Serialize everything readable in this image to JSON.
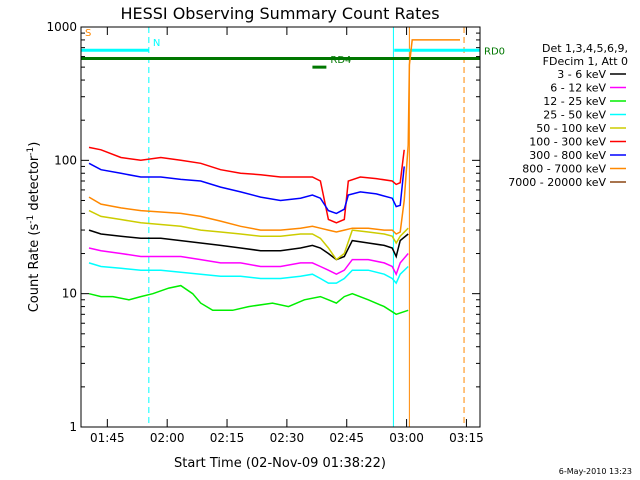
{
  "chart_data": {
    "type": "line",
    "title": "HESSI Observing Summary Count Rates",
    "xlabel": "Start Time (02-Nov-09 01:38:22)",
    "ylabel_prefix": "Count Rate (s",
    "ylabel_sup1": "-1",
    "ylabel_mid": " detector",
    "ylabel_sup2": "-1",
    "ylabel_suffix": ")",
    "y_scale": "log",
    "ylim": [
      1,
      1000
    ],
    "xlim_minutes": [
      0,
      100
    ],
    "x_ticks": [
      {
        "label": "01:45",
        "min": 6.6
      },
      {
        "label": "02:00",
        "min": 21.6
      },
      {
        "label": "02:15",
        "min": 36.6
      },
      {
        "label": "02:30",
        "min": 51.6
      },
      {
        "label": "02:45",
        "min": 66.6
      },
      {
        "label": "03:00",
        "min": 81.6
      },
      {
        "label": "03:15",
        "min": 96.6
      }
    ],
    "y_ticks": [
      {
        "label": "1",
        "v": 1
      },
      {
        "label": "10",
        "v": 10
      },
      {
        "label": "100",
        "v": 100
      },
      {
        "label": "1000",
        "v": 1000
      }
    ],
    "legend_header": [
      "Det 1,3,4,5,6,9,",
      "FDecim 1, Att 0"
    ],
    "legend_position": "right",
    "series": [
      {
        "name": "3 - 6 keV",
        "color": "#000000",
        "points": [
          [
            2,
            30
          ],
          [
            5,
            28
          ],
          [
            10,
            27
          ],
          [
            15,
            26
          ],
          [
            20,
            26
          ],
          [
            25,
            25
          ],
          [
            30,
            24
          ],
          [
            35,
            23
          ],
          [
            40,
            22
          ],
          [
            45,
            21
          ],
          [
            50,
            21
          ],
          [
            55,
            22
          ],
          [
            58,
            23
          ],
          [
            60,
            22
          ],
          [
            62,
            20
          ],
          [
            64,
            18
          ],
          [
            66,
            19
          ],
          [
            68,
            25
          ],
          [
            72,
            24
          ],
          [
            76,
            23
          ],
          [
            78,
            22
          ],
          [
            79,
            19
          ],
          [
            80,
            25
          ],
          [
            82,
            28
          ]
        ]
      },
      {
        "name": "6 - 12 keV",
        "color": "#ff00ff",
        "points": [
          [
            2,
            22
          ],
          [
            5,
            21
          ],
          [
            10,
            20
          ],
          [
            15,
            19
          ],
          [
            20,
            19
          ],
          [
            25,
            19
          ],
          [
            30,
            18
          ],
          [
            35,
            17
          ],
          [
            40,
            17
          ],
          [
            45,
            16
          ],
          [
            50,
            16
          ],
          [
            55,
            17
          ],
          [
            58,
            17
          ],
          [
            60,
            16
          ],
          [
            62,
            15
          ],
          [
            64,
            14
          ],
          [
            66,
            15
          ],
          [
            68,
            18
          ],
          [
            72,
            18
          ],
          [
            76,
            17
          ],
          [
            78,
            16
          ],
          [
            79,
            14
          ],
          [
            80,
            17
          ],
          [
            82,
            20
          ]
        ]
      },
      {
        "name": "12 - 25 keV",
        "color": "#00ee00",
        "points": [
          [
            2,
            10
          ],
          [
            5,
            9.5
          ],
          [
            8,
            9.5
          ],
          [
            12,
            9
          ],
          [
            15,
            9.5
          ],
          [
            18,
            10
          ],
          [
            22,
            11
          ],
          [
            25,
            11.5
          ],
          [
            28,
            10
          ],
          [
            30,
            8.5
          ],
          [
            33,
            7.5
          ],
          [
            38,
            7.5
          ],
          [
            42,
            8
          ],
          [
            48,
            8.5
          ],
          [
            52,
            8
          ],
          [
            56,
            9
          ],
          [
            60,
            9.5
          ],
          [
            62,
            9
          ],
          [
            64,
            8.5
          ],
          [
            66,
            9.5
          ],
          [
            68,
            10
          ],
          [
            72,
            9
          ],
          [
            76,
            8
          ],
          [
            79,
            7
          ],
          [
            82,
            7.5
          ]
        ]
      },
      {
        "name": "25 - 50 keV",
        "color": "#00ffff",
        "points": [
          [
            2,
            17
          ],
          [
            5,
            16
          ],
          [
            10,
            15.5
          ],
          [
            15,
            15
          ],
          [
            20,
            15
          ],
          [
            25,
            14.5
          ],
          [
            30,
            14
          ],
          [
            35,
            13.5
          ],
          [
            40,
            13.5
          ],
          [
            45,
            13
          ],
          [
            50,
            13
          ],
          [
            55,
            13.5
          ],
          [
            58,
            14
          ],
          [
            60,
            13
          ],
          [
            62,
            12
          ],
          [
            64,
            12
          ],
          [
            66,
            13
          ],
          [
            68,
            15
          ],
          [
            72,
            15
          ],
          [
            76,
            14
          ],
          [
            78,
            13
          ],
          [
            79,
            12
          ],
          [
            80,
            14
          ],
          [
            82,
            16
          ]
        ]
      },
      {
        "name": "50 - 100 keV",
        "color": "#cccc00",
        "points": [
          [
            2,
            42
          ],
          [
            5,
            38
          ],
          [
            10,
            36
          ],
          [
            15,
            34
          ],
          [
            20,
            33
          ],
          [
            25,
            32
          ],
          [
            30,
            30
          ],
          [
            35,
            29
          ],
          [
            40,
            28
          ],
          [
            45,
            27
          ],
          [
            50,
            27
          ],
          [
            55,
            28
          ],
          [
            58,
            28
          ],
          [
            60,
            26
          ],
          [
            62,
            22
          ],
          [
            64,
            18
          ],
          [
            66,
            20
          ],
          [
            68,
            30
          ],
          [
            72,
            29
          ],
          [
            76,
            28
          ],
          [
            78,
            27
          ],
          [
            79,
            24
          ],
          [
            80,
            27
          ],
          [
            82,
            31
          ]
        ]
      },
      {
        "name": "100 - 300 keV",
        "color": "#ff0000",
        "points": [
          [
            2,
            125
          ],
          [
            5,
            120
          ],
          [
            10,
            105
          ],
          [
            15,
            100
          ],
          [
            20,
            105
          ],
          [
            25,
            100
          ],
          [
            30,
            95
          ],
          [
            35,
            85
          ],
          [
            40,
            80
          ],
          [
            45,
            78
          ],
          [
            50,
            75
          ],
          [
            55,
            75
          ],
          [
            58,
            75
          ],
          [
            60,
            70
          ],
          [
            62,
            36
          ],
          [
            64,
            34
          ],
          [
            66,
            36
          ],
          [
            67,
            70
          ],
          [
            70,
            75
          ],
          [
            74,
            73
          ],
          [
            78,
            70
          ],
          [
            79,
            66
          ],
          [
            80,
            68
          ],
          [
            81,
            120
          ]
        ]
      },
      {
        "name": "300 - 800 keV",
        "color": "#0000ff",
        "points": [
          [
            2,
            95
          ],
          [
            5,
            85
          ],
          [
            10,
            80
          ],
          [
            15,
            75
          ],
          [
            20,
            75
          ],
          [
            25,
            72
          ],
          [
            30,
            70
          ],
          [
            35,
            63
          ],
          [
            40,
            58
          ],
          [
            45,
            53
          ],
          [
            50,
            50
          ],
          [
            55,
            52
          ],
          [
            58,
            55
          ],
          [
            60,
            52
          ],
          [
            62,
            42
          ],
          [
            64,
            40
          ],
          [
            66,
            43
          ],
          [
            67,
            55
          ],
          [
            70,
            58
          ],
          [
            74,
            56
          ],
          [
            78,
            52
          ],
          [
            79,
            45
          ],
          [
            80,
            46
          ],
          [
            81,
            90
          ]
        ]
      },
      {
        "name": "800 - 7000 keV",
        "color": "#ff8800",
        "points": [
          [
            2,
            53
          ],
          [
            5,
            47
          ],
          [
            10,
            44
          ],
          [
            15,
            42
          ],
          [
            20,
            41
          ],
          [
            25,
            40
          ],
          [
            30,
            38
          ],
          [
            35,
            35
          ],
          [
            40,
            32
          ],
          [
            45,
            30
          ],
          [
            50,
            30
          ],
          [
            55,
            31
          ],
          [
            58,
            32
          ],
          [
            60,
            31
          ],
          [
            62,
            30
          ],
          [
            64,
            29
          ],
          [
            66,
            30
          ],
          [
            68,
            31
          ],
          [
            72,
            31
          ],
          [
            76,
            30
          ],
          [
            78,
            30
          ],
          [
            79,
            28
          ],
          [
            80,
            29
          ],
          [
            81,
            50
          ],
          [
            82,
            130
          ],
          [
            82.3,
            520
          ],
          [
            83,
            800
          ],
          [
            95,
            800
          ]
        ]
      },
      {
        "name": "7000 - 20000 keV",
        "color": "#8b4513",
        "points": []
      }
    ],
    "flags": [
      {
        "label": "S",
        "color": "#ff8800",
        "x0": 0,
        "x1": 0,
        "y": 800
      },
      {
        "label": "N",
        "color": "#00ffff",
        "x0": 0,
        "x1": 17,
        "y": 670
      },
      {
        "label": "RD0",
        "color": "#007700",
        "x0": 0,
        "x1": 100,
        "y": 580
      },
      {
        "label": "RD4",
        "color": "#007700",
        "x0": 58,
        "x1": 61.5,
        "y": 500
      },
      {
        "label": "",
        "color": "#00ffff",
        "x0": 78.5,
        "x1": 100,
        "y": 670
      }
    ],
    "vlines": [
      {
        "x": 0,
        "color": "#00ffff",
        "dash": true
      },
      {
        "x": 17,
        "color": "#00ffff",
        "dash": true
      },
      {
        "x": 78.3,
        "color": "#00ffff",
        "dash": false
      },
      {
        "x": 82.3,
        "color": "#ff8800",
        "dash": false
      },
      {
        "x": 96,
        "color": "#ff8800",
        "dash": true
      }
    ]
  },
  "footer": {
    "timestamp": "6-May-2010 13:23"
  }
}
